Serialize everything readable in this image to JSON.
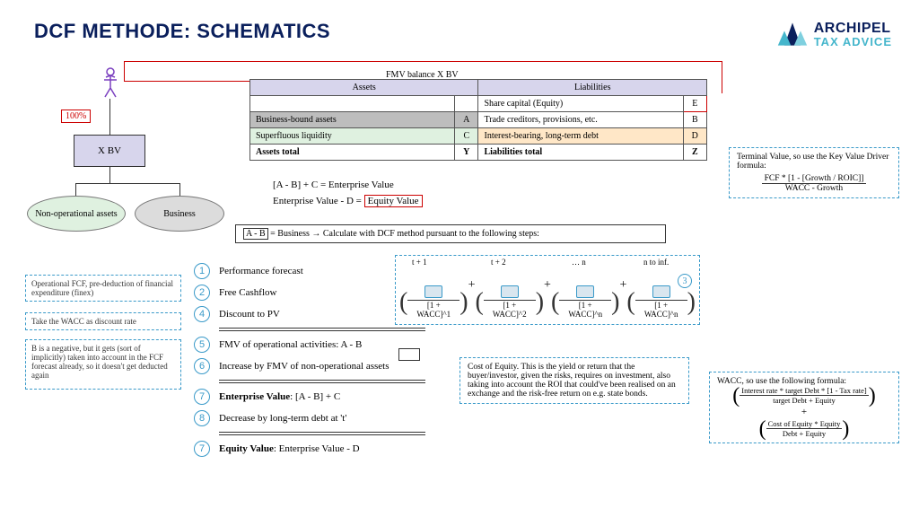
{
  "title": "DCF METHODE: SCHEMATICS",
  "logo": {
    "line1": "ARCHIPEL",
    "line2": "TAX ADVICE",
    "colors": {
      "dark": "#0a1f5c",
      "teal": "#45b6cc"
    }
  },
  "owner_pct": "100%",
  "entity": "X BV",
  "nodes": {
    "nonop": "Non-operational assets",
    "business": "Business"
  },
  "balance": {
    "caption": "FMV balance X BV",
    "headers": {
      "assets": "Assets",
      "liabilities": "Liabilities"
    },
    "rows": [
      {
        "l": "",
        "lt": "",
        "r": "Share capital (Equity)",
        "rt": "E",
        "lbg": "#ffffff",
        "rbg": "#ffffff",
        "rt_border": "#cc0000"
      },
      {
        "l": "Business-bound assets",
        "lt": "A",
        "r": "Trade creditors, provisions, etc.",
        "rt": "B",
        "lbg": "#bdbdbd",
        "rbg": "#ffffff"
      },
      {
        "l": "Superfluous liquidity",
        "lt": "C",
        "r": "Interest-bearing, long-term debt",
        "rt": "D",
        "lbg": "#dff1e0",
        "rbg": "#ffe7c7"
      },
      {
        "l": "Assets total",
        "lt": "Y",
        "r": "Liabilities total",
        "rt": "Z",
        "bold": true
      }
    ]
  },
  "equations": {
    "ev": "[A - B] + C = Enterprise Value",
    "eqv_pre": "Enterprise Value - D = ",
    "eqv_box": "Equity Value",
    "biz_ab": "A - B",
    "biz_rest": " = Business → Calculate with DCF method pursuant to the following steps:"
  },
  "steps": [
    {
      "n": "1",
      "t": "Performance forecast"
    },
    {
      "n": "2",
      "t": "Free Cashflow"
    },
    {
      "n": "4",
      "t": "Discount to PV"
    },
    {
      "divider": true
    },
    {
      "n": "5",
      "t": "FMV of operational activities: A - B"
    },
    {
      "n": "6",
      "t": "Increase by FMV of non-operational assets"
    },
    {
      "divider": true
    },
    {
      "n": "7",
      "t": "Enterprise Value: [A - B] + C",
      "bold_prefix": "Enterprise Value"
    },
    {
      "n": "8",
      "t": "Decrease by long-term debt at 't'"
    },
    {
      "divider": true
    },
    {
      "n": "7",
      "t": "Equity Value: Enterprise Value - D",
      "bold_prefix": "Equity Value"
    }
  ],
  "left_notes": {
    "fcf": "Operational FCF, pre-deduction of financial expenditure (finex)",
    "wacc": "Take the WACC as discount rate",
    "b": "B is a negative, but it gets (sort of implicitly) taken into account in the FCF forecast already, so it doesn't get deducted again"
  },
  "formula": {
    "periods": [
      "t + 1",
      "t + 2",
      "… n",
      "n to inf."
    ],
    "denoms": [
      "[1 + WACC]^1",
      "[1 + WACC]^2",
      "[1 + WACC]^n",
      "[1 + WACC]^n"
    ],
    "arrow": "———→"
  },
  "right_notes": {
    "tv_title": "Terminal Value, so use the Key Value Driver formula:",
    "tv_top": "FCF * [1 - [Growth / ROIC]]",
    "tv_bot": "WACC - Growth",
    "coe": "Cost of Equity. This is the yield or return that the buyer/investor, given the risks, requires on investment, also taking into account the ROI that could've been realised on an exchange and the risk-free return on e.g. state bonds.",
    "wacc_title": "WACC, so use the following formula:",
    "wacc1_top": "Interest rate * target Debt * [1 - Tax rate]",
    "wacc1_bot": "target Debt + Equity",
    "wacc2_top": "Cost of Equity * Equity",
    "wacc2_bot": "Debt + Equity"
  },
  "colors": {
    "title": "#0a1f5c",
    "accent": "#3a9ac9",
    "red": "#cc0000",
    "lavender": "#d7d5ec",
    "grey": "#bdbdbd",
    "green": "#dff1e0",
    "peach": "#ffe7c7"
  }
}
